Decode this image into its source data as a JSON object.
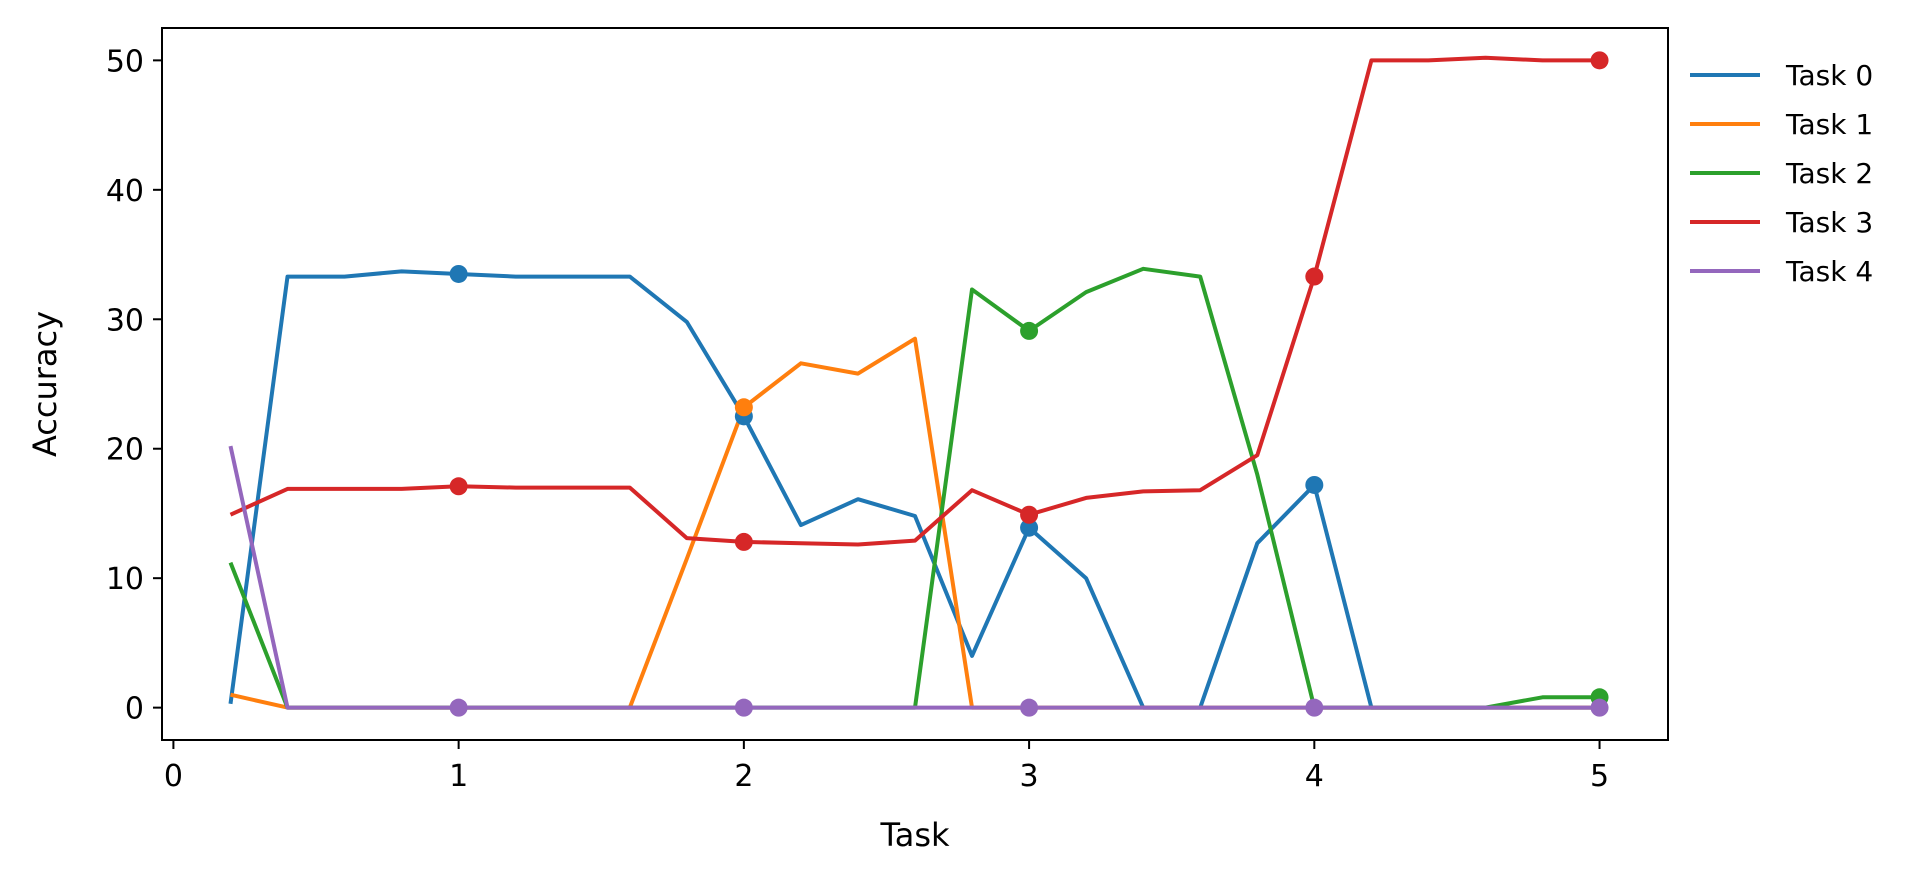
{
  "chart_data": {
    "type": "line",
    "xlabel": "Task",
    "ylabel": "Accuracy",
    "xlim": [
      -0.04,
      5.24
    ],
    "ylim": [
      -2.5,
      52.5
    ],
    "xticks": [
      0,
      1,
      2,
      3,
      4,
      5
    ],
    "yticks": [
      0,
      10,
      20,
      30,
      40,
      50
    ],
    "grid": false,
    "legend_position": "outside-right",
    "x": [
      0.2,
      0.4,
      0.6,
      0.8,
      1.0,
      1.2,
      1.4,
      1.6,
      1.8,
      2.0,
      2.2,
      2.4,
      2.6,
      2.8,
      3.0,
      3.2,
      3.4,
      3.6,
      3.8,
      4.0,
      4.2,
      4.4,
      4.6,
      4.8,
      5.0
    ],
    "series": [
      {
        "name": "Task 0",
        "color": "#1f77b4",
        "values": [
          0.3,
          33.3,
          33.3,
          33.7,
          33.5,
          33.3,
          33.3,
          33.3,
          29.8,
          22.5,
          14.1,
          16.1,
          14.8,
          4.0,
          13.9,
          10.0,
          0,
          0,
          12.7,
          17.2,
          0,
          0,
          0,
          0,
          0
        ],
        "markers": [
          {
            "x": 1,
            "y": 33.5
          },
          {
            "x": 2,
            "y": 22.5
          },
          {
            "x": 3,
            "y": 13.9
          },
          {
            "x": 4,
            "y": 17.2
          }
        ]
      },
      {
        "name": "Task 1",
        "color": "#ff7f0e",
        "values": [
          1.0,
          0,
          0,
          0,
          0,
          0,
          0,
          0,
          11.5,
          23.2,
          26.6,
          25.8,
          28.5,
          0,
          0,
          0,
          0,
          0,
          0,
          0,
          0,
          0,
          0,
          0,
          0
        ],
        "markers": [
          {
            "x": 2,
            "y": 23.2
          }
        ]
      },
      {
        "name": "Task 2",
        "color": "#2ca02c",
        "values": [
          11.2,
          0,
          0,
          0,
          0,
          0,
          0,
          0,
          0,
          0,
          0,
          0,
          0,
          32.3,
          29.1,
          32.1,
          33.9,
          33.3,
          18.0,
          0,
          0,
          0,
          0,
          0.8,
          0.8
        ],
        "markers": [
          {
            "x": 3,
            "y": 29.1
          },
          {
            "x": 5,
            "y": 0.8
          }
        ]
      },
      {
        "name": "Task 3",
        "color": "#d62728",
        "values": [
          14.9,
          16.9,
          16.9,
          16.9,
          17.1,
          17.0,
          17.0,
          17.0,
          13.1,
          12.8,
          12.7,
          12.6,
          12.9,
          16.8,
          14.9,
          16.2,
          16.7,
          16.8,
          19.5,
          33.3,
          50.0,
          50.0,
          50.2,
          50.0,
          50.0
        ],
        "markers": [
          {
            "x": 1,
            "y": 17.1
          },
          {
            "x": 2,
            "y": 12.8
          },
          {
            "x": 3,
            "y": 14.9
          },
          {
            "x": 4,
            "y": 33.3
          },
          {
            "x": 5,
            "y": 50.0
          }
        ]
      },
      {
        "name": "Task 4",
        "color": "#9467bd",
        "values": [
          20.2,
          0,
          0,
          0,
          0,
          0,
          0,
          0,
          0,
          0,
          0,
          0,
          0,
          0,
          0,
          0,
          0,
          0,
          0,
          0,
          0,
          0,
          0,
          0,
          0
        ],
        "markers": [
          {
            "x": 1,
            "y": 0
          },
          {
            "x": 2,
            "y": 0
          },
          {
            "x": 3,
            "y": 0
          },
          {
            "x": 4,
            "y": 0
          },
          {
            "x": 5,
            "y": 0
          }
        ]
      }
    ]
  }
}
